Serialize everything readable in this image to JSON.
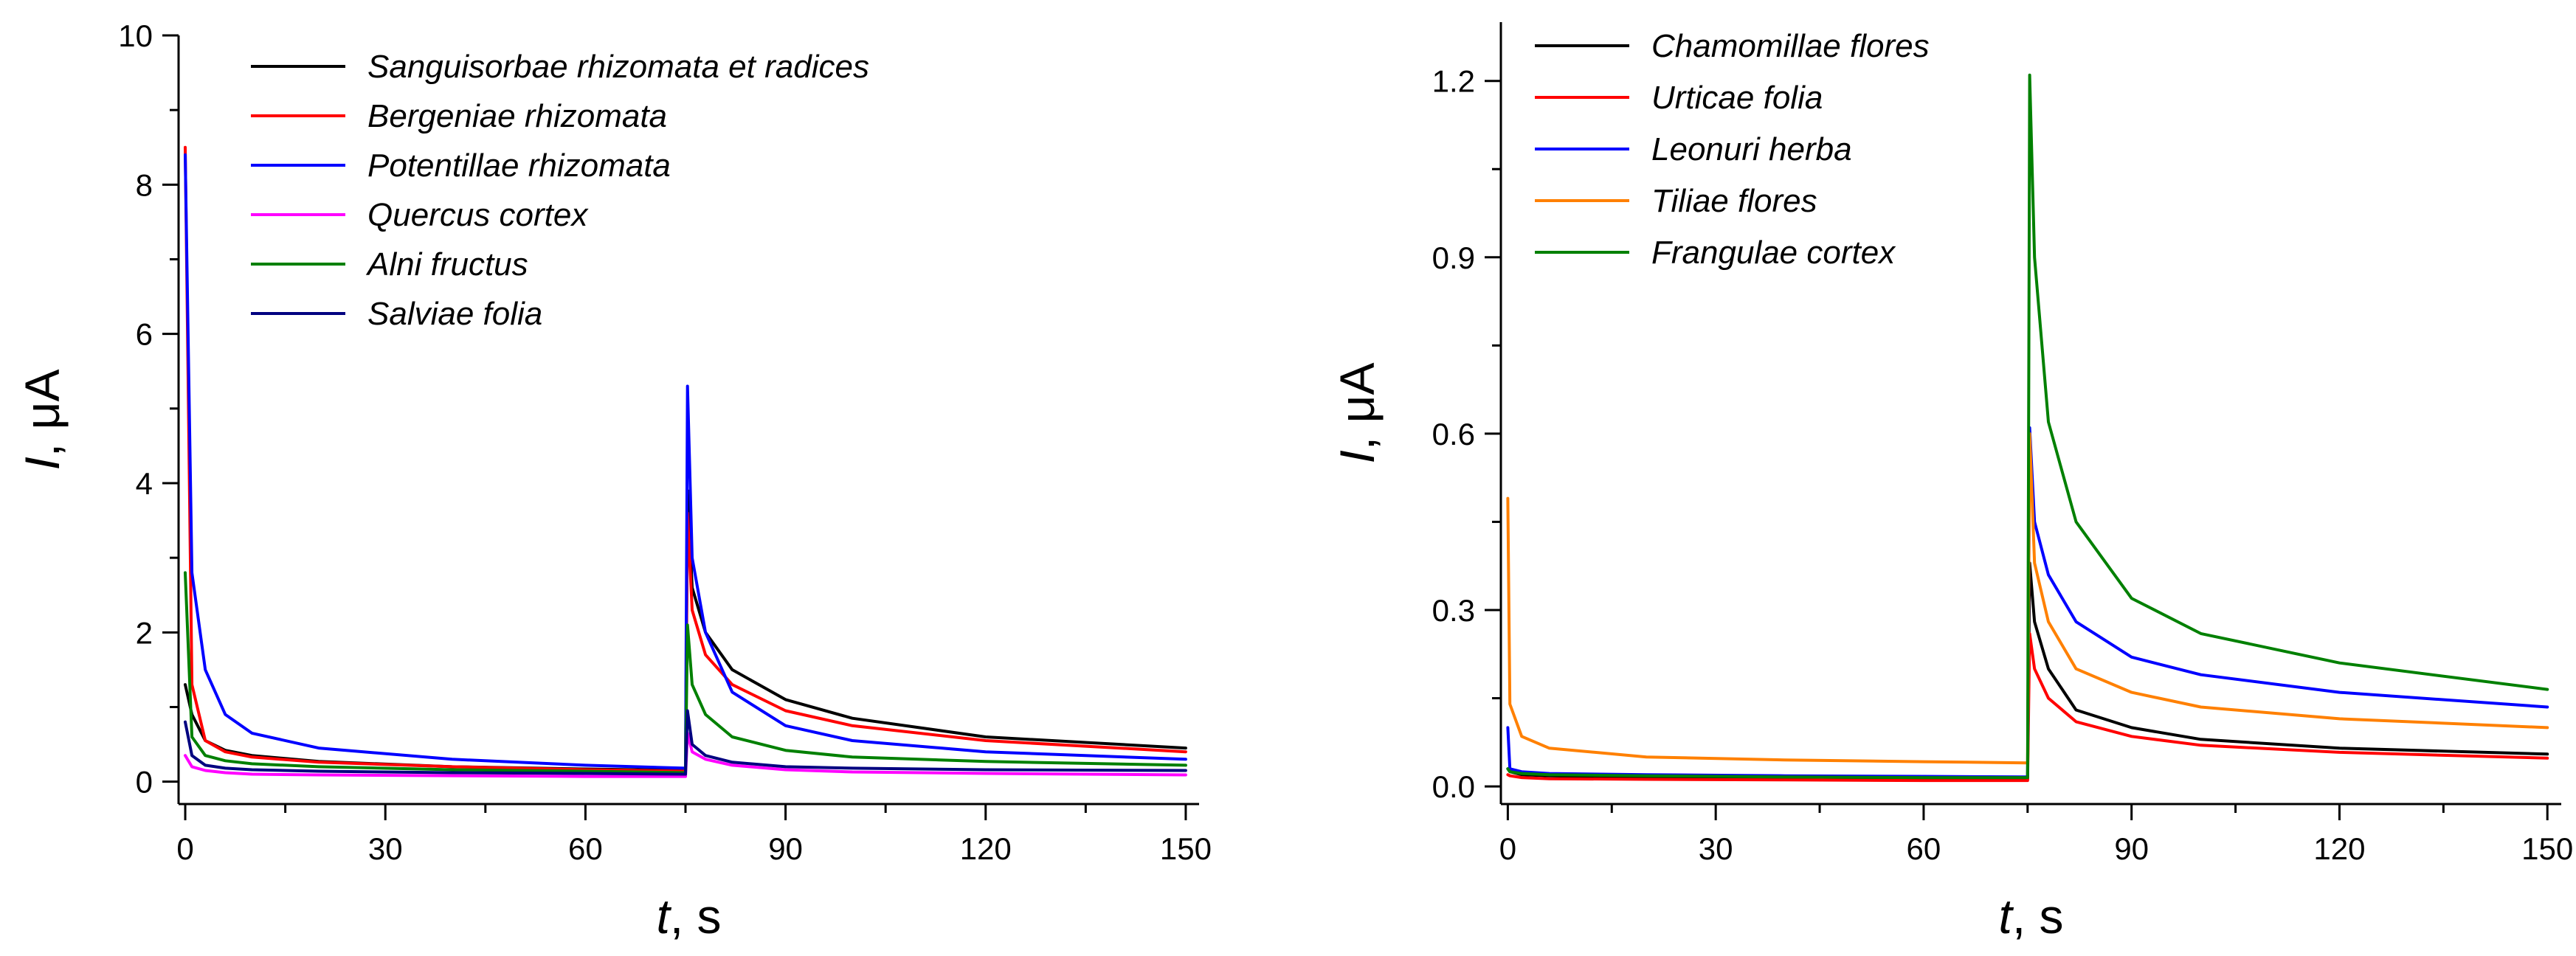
{
  "chart_data": [
    {
      "type": "line",
      "xlabel_var": "t",
      "xlabel_unit": ", s",
      "ylabel_var": "I",
      "ylabel_unit": ", μA",
      "xlim": [
        -1,
        152
      ],
      "ylim": [
        -0.3,
        10
      ],
      "xticks": [
        0,
        30,
        60,
        90,
        120,
        150
      ],
      "yticks": [
        0,
        2,
        4,
        6,
        8,
        10
      ],
      "xtick_labels": [
        "0",
        "30",
        "60",
        "90",
        "120",
        "150"
      ],
      "ytick_labels": [
        "0",
        "2",
        "4",
        "6",
        "8",
        "10"
      ],
      "legend_position": "top-center",
      "series": [
        {
          "name": "Sanguisorbae rhizomata et radices",
          "color": "#000000",
          "x": [
            0,
            1,
            3,
            6,
            10,
            20,
            40,
            60,
            75,
            75.3,
            76,
            78,
            82,
            90,
            100,
            120,
            150
          ],
          "values": [
            1.3,
            0.9,
            0.55,
            0.42,
            0.35,
            0.27,
            0.2,
            0.17,
            0.15,
            3.9,
            2.6,
            2.0,
            1.5,
            1.1,
            0.85,
            0.6,
            0.45
          ]
        },
        {
          "name": "Bergeniae rhizomata",
          "color": "#ff0000",
          "x": [
            0,
            1,
            3,
            6,
            10,
            20,
            40,
            60,
            75,
            75.3,
            76,
            78,
            82,
            90,
            100,
            120,
            150
          ],
          "values": [
            8.5,
            1.3,
            0.55,
            0.4,
            0.33,
            0.26,
            0.2,
            0.16,
            0.14,
            3.6,
            2.3,
            1.7,
            1.3,
            0.95,
            0.75,
            0.55,
            0.4
          ]
        },
        {
          "name": "Potentillae rhizomata",
          "color": "#0000ff",
          "x": [
            0,
            1,
            3,
            6,
            10,
            20,
            40,
            60,
            75,
            75.3,
            76,
            78,
            82,
            90,
            100,
            120,
            150
          ],
          "values": [
            8.4,
            2.8,
            1.5,
            0.9,
            0.65,
            0.45,
            0.3,
            0.22,
            0.18,
            5.3,
            3.0,
            2.0,
            1.2,
            0.75,
            0.55,
            0.4,
            0.3
          ]
        },
        {
          "name": "Quercus cortex",
          "color": "#ff00ff",
          "x": [
            0,
            1,
            3,
            6,
            10,
            20,
            40,
            60,
            75,
            75.3,
            76,
            78,
            82,
            90,
            100,
            120,
            150
          ],
          "values": [
            0.35,
            0.2,
            0.15,
            0.12,
            0.1,
            0.09,
            0.08,
            0.07,
            0.07,
            0.65,
            0.4,
            0.3,
            0.22,
            0.16,
            0.13,
            0.11,
            0.09
          ]
        },
        {
          "name": "Alni fructus",
          "color": "#008000",
          "x": [
            0,
            1,
            3,
            6,
            10,
            20,
            40,
            60,
            75,
            75.3,
            76,
            78,
            82,
            90,
            100,
            120,
            150
          ],
          "values": [
            2.8,
            0.6,
            0.35,
            0.28,
            0.24,
            0.2,
            0.16,
            0.14,
            0.12,
            2.1,
            1.3,
            0.9,
            0.6,
            0.42,
            0.33,
            0.27,
            0.22
          ]
        },
        {
          "name": "Salviae folia",
          "color": "#000080",
          "x": [
            0,
            1,
            3,
            6,
            10,
            20,
            40,
            60,
            75,
            75.3,
            76,
            78,
            82,
            90,
            100,
            120,
            150
          ],
          "values": [
            0.8,
            0.35,
            0.22,
            0.18,
            0.16,
            0.14,
            0.12,
            0.11,
            0.1,
            0.95,
            0.5,
            0.35,
            0.26,
            0.2,
            0.18,
            0.16,
            0.15
          ]
        }
      ]
    },
    {
      "type": "line",
      "xlabel_var": "t",
      "xlabel_unit": ", s",
      "ylabel_var": "I",
      "ylabel_unit": ", μA",
      "xlim": [
        -1,
        152
      ],
      "ylim": [
        -0.03,
        1.3
      ],
      "xticks": [
        0,
        30,
        60,
        90,
        120,
        150
      ],
      "yticks": [
        0,
        0.3,
        0.6,
        0.9,
        1.2
      ],
      "xtick_labels": [
        "0",
        "30",
        "60",
        "90",
        "120",
        "150"
      ],
      "ytick_labels": [
        "0.0",
        "0.3",
        "0.6",
        "0.9",
        "1.2"
      ],
      "legend_position": "top-left",
      "series": [
        {
          "name": "Chamomillae flores",
          "color": "#000000",
          "x": [
            0,
            0.3,
            2,
            6,
            20,
            40,
            60,
            75,
            75.3,
            76,
            78,
            82,
            90,
            100,
            120,
            150
          ],
          "values": [
            0.03,
            0.025,
            0.02,
            0.018,
            0.015,
            0.013,
            0.012,
            0.012,
            0.38,
            0.28,
            0.2,
            0.13,
            0.1,
            0.08,
            0.065,
            0.055
          ]
        },
        {
          "name": "Urticae folia",
          "color": "#ff0000",
          "x": [
            0,
            0.3,
            2,
            6,
            20,
            40,
            60,
            75,
            75.3,
            76,
            78,
            82,
            90,
            100,
            120,
            150
          ],
          "values": [
            0.02,
            0.018,
            0.015,
            0.013,
            0.012,
            0.011,
            0.01,
            0.01,
            0.26,
            0.2,
            0.15,
            0.11,
            0.085,
            0.07,
            0.058,
            0.048
          ]
        },
        {
          "name": "Leonuri herba",
          "color": "#0000ff",
          "x": [
            0,
            0.3,
            2,
            6,
            20,
            40,
            60,
            75,
            75.3,
            76,
            78,
            82,
            90,
            100,
            120,
            150
          ],
          "values": [
            0.1,
            0.03,
            0.025,
            0.022,
            0.02,
            0.018,
            0.017,
            0.016,
            0.61,
            0.45,
            0.36,
            0.28,
            0.22,
            0.19,
            0.16,
            0.135
          ]
        },
        {
          "name": "Tiliae flores",
          "color": "#ff8000",
          "x": [
            0,
            0.3,
            2,
            6,
            20,
            40,
            60,
            75,
            75.3,
            76,
            78,
            82,
            90,
            100,
            120,
            150
          ],
          "values": [
            0.49,
            0.14,
            0.085,
            0.065,
            0.05,
            0.045,
            0.042,
            0.04,
            0.6,
            0.38,
            0.28,
            0.2,
            0.16,
            0.135,
            0.115,
            0.1
          ]
        },
        {
          "name": "Frangulae cortex",
          "color": "#008000",
          "x": [
            0,
            0.3,
            2,
            6,
            20,
            40,
            60,
            75,
            75.3,
            76,
            78,
            82,
            90,
            100,
            120,
            150
          ],
          "values": [
            0.03,
            0.025,
            0.022,
            0.02,
            0.018,
            0.016,
            0.015,
            0.015,
            1.21,
            0.9,
            0.62,
            0.45,
            0.32,
            0.26,
            0.21,
            0.165
          ]
        }
      ]
    }
  ]
}
